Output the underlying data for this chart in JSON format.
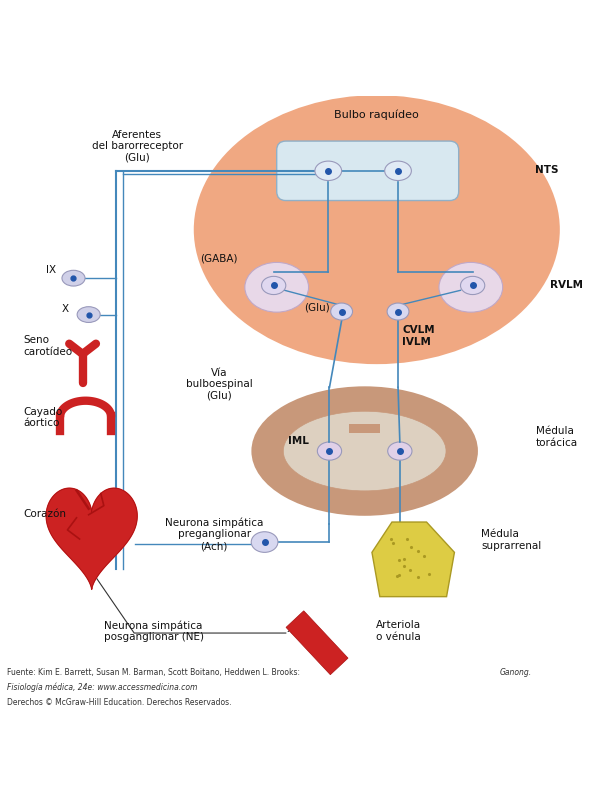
{
  "bg_color": "#ffffff",
  "salmon_color": "#F0A882",
  "light_salmon": "#F5C4A8",
  "nts_box_color": "#D8E8F0",
  "nts_box_border": "#B0C8D8",
  "neuron_body_color": "#E8E8F5",
  "neuron_dot_color": "#2255AA",
  "line_color": "#4488BB",
  "heart_color": "#CC2222",
  "heart_dark": "#AA1111",
  "artery_color": "#CC2222",
  "adrenal_color": "#DDCC44",
  "adrenal_spot": "#AA9922",
  "text_color": "#111111",
  "footer_line1": "Fuente: Kim E. Barrett, Susan M. Barman, Scott Boitano, Heddwen L. Brooks: Ganong.",
  "footer_line2": "Fisiología médica, 24e: www.accessmedicina.com",
  "footer_line3": "Derechos © McGraw-Hill Education. Derechos Reservados."
}
